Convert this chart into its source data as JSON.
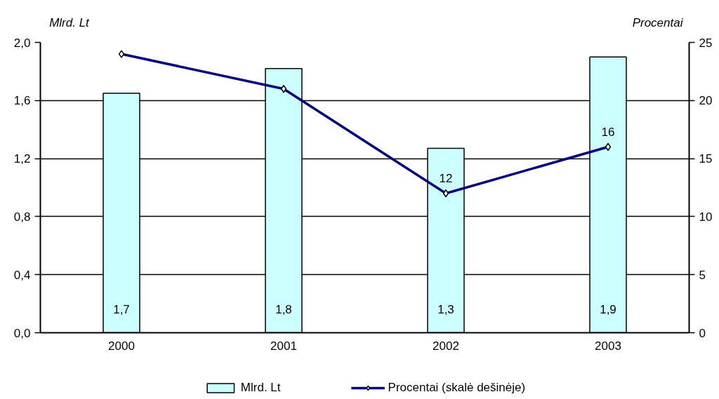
{
  "chart_data": {
    "type": "bar",
    "categories": [
      "2000",
      "2001",
      "2002",
      "2003"
    ],
    "ylabel": "Mlrd. Lt",
    "y2label": "Procentai",
    "ylim": [
      0,
      2
    ],
    "yticks": [
      {
        "value": 0,
        "label": "0,0"
      },
      {
        "value": 0.4,
        "label": "0,4"
      },
      {
        "value": 0.8,
        "label": "0,8"
      },
      {
        "value": 1.2,
        "label": "1,2"
      },
      {
        "value": 1.6,
        "label": "1,6"
      },
      {
        "value": 2,
        "label": "2,0"
      }
    ],
    "y2lim": [
      0,
      25
    ],
    "y2ticks": [
      0,
      5,
      10,
      15,
      20,
      25
    ],
    "grid": "y",
    "legend": "bottom",
    "series": [
      {
        "name": "Mlrd. Lt",
        "color": "#ccffff",
        "values": [
          1.65,
          1.82,
          1.27,
          1.9
        ],
        "value_labels": [
          "1,7",
          "1,8",
          "1,3",
          "1,9"
        ]
      },
      {
        "name": "Procentai (skalė dešinėje)",
        "type": "line",
        "axis": "y2",
        "color": "#000080",
        "marker": "diamond",
        "values": [
          24,
          21,
          12,
          16
        ],
        "value_labels": [
          null,
          null,
          "12",
          "16"
        ]
      }
    ]
  }
}
